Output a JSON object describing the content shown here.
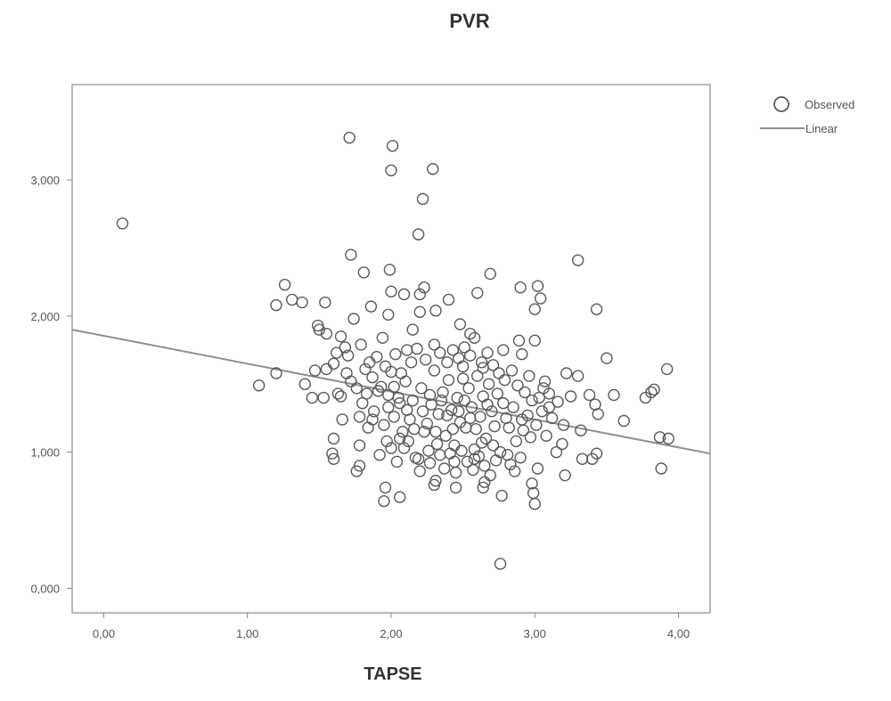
{
  "chart_data": {
    "type": "scatter",
    "title": "PVR",
    "xlabel": "TAPSE",
    "ylabel": "",
    "xlim": [
      -0.22,
      4.22
    ],
    "ylim": [
      -0.18,
      3.7
    ],
    "x_ticks": [
      0,
      1,
      2,
      3,
      4
    ],
    "x_tick_labels": [
      "0,00",
      "1,00",
      "2,00",
      "3,00",
      "4,00"
    ],
    "y_ticks": [
      0,
      1,
      2,
      3
    ],
    "y_tick_labels": [
      "0,000",
      "1,000",
      "2,000",
      "3,000"
    ],
    "grid": false,
    "legend": {
      "position": "top-right",
      "entries": [
        {
          "label": "Observed",
          "marker": "open-circle"
        },
        {
          "label": "Linear",
          "marker": "line"
        }
      ]
    },
    "fit_line": {
      "name": "Linear",
      "x": [
        -0.22,
        4.22
      ],
      "y": [
        1.9,
        0.99
      ]
    },
    "series": [
      {
        "name": "Observed",
        "points": [
          [
            0.13,
            2.68
          ],
          [
            1.71,
            3.31
          ],
          [
            2.01,
            3.25
          ],
          [
            2.0,
            3.07
          ],
          [
            2.29,
            3.08
          ],
          [
            2.22,
            2.86
          ],
          [
            2.19,
            2.6
          ],
          [
            1.72,
            2.45
          ],
          [
            3.3,
            2.41
          ],
          [
            1.81,
            2.32
          ],
          [
            1.99,
            2.34
          ],
          [
            2.69,
            2.31
          ],
          [
            1.26,
            2.23
          ],
          [
            2.9,
            2.21
          ],
          [
            3.02,
            2.22
          ],
          [
            2.23,
            2.21
          ],
          [
            1.31,
            2.12
          ],
          [
            1.38,
            2.1
          ],
          [
            1.2,
            2.08
          ],
          [
            1.54,
            2.1
          ],
          [
            2.0,
            2.18
          ],
          [
            2.09,
            2.16
          ],
          [
            2.2,
            2.16
          ],
          [
            2.6,
            2.17
          ],
          [
            3.04,
            2.13
          ],
          [
            3.43,
            2.05
          ],
          [
            2.31,
            2.04
          ],
          [
            2.4,
            2.12
          ],
          [
            1.86,
            2.07
          ],
          [
            1.98,
            2.01
          ],
          [
            1.74,
            1.98
          ],
          [
            2.2,
            2.03
          ],
          [
            3.0,
            2.05
          ],
          [
            1.49,
            1.93
          ],
          [
            1.5,
            1.9
          ],
          [
            1.55,
            1.87
          ],
          [
            2.48,
            1.94
          ],
          [
            2.58,
            1.84
          ],
          [
            2.55,
            1.87
          ],
          [
            1.65,
            1.85
          ],
          [
            1.94,
            1.84
          ],
          [
            2.15,
            1.9
          ],
          [
            2.3,
            1.79
          ],
          [
            2.89,
            1.82
          ],
          [
            3.0,
            1.82
          ],
          [
            1.68,
            1.77
          ],
          [
            1.79,
            1.79
          ],
          [
            2.11,
            1.75
          ],
          [
            2.78,
            1.75
          ],
          [
            1.62,
            1.73
          ],
          [
            2.91,
            1.72
          ],
          [
            3.5,
            1.69
          ],
          [
            1.7,
            1.71
          ],
          [
            2.64,
            1.62
          ],
          [
            1.47,
            1.6
          ],
          [
            1.6,
            1.65
          ],
          [
            1.82,
            1.61
          ],
          [
            3.22,
            1.58
          ],
          [
            3.92,
            1.61
          ],
          [
            1.2,
            1.58
          ],
          [
            1.55,
            1.61
          ],
          [
            2.0,
            1.59
          ],
          [
            3.3,
            1.56
          ],
          [
            1.87,
            1.55
          ],
          [
            2.5,
            1.54
          ],
          [
            1.4,
            1.5
          ],
          [
            1.08,
            1.49
          ],
          [
            1.93,
            1.48
          ],
          [
            3.06,
            1.47
          ],
          [
            3.83,
            1.46
          ],
          [
            3.81,
            1.44
          ],
          [
            3.38,
            1.42
          ],
          [
            3.55,
            1.42
          ],
          [
            1.63,
            1.43
          ],
          [
            1.65,
            1.41
          ],
          [
            1.98,
            1.42
          ],
          [
            3.25,
            1.41
          ],
          [
            3.77,
            1.4
          ],
          [
            1.45,
            1.4
          ],
          [
            1.53,
            1.4
          ],
          [
            3.42,
            1.35
          ],
          [
            3.1,
            1.33
          ],
          [
            3.44,
            1.28
          ],
          [
            3.62,
            1.23
          ],
          [
            1.66,
            1.24
          ],
          [
            1.78,
            1.26
          ],
          [
            3.2,
            1.2
          ],
          [
            3.32,
            1.16
          ],
          [
            1.6,
            1.1
          ],
          [
            2.06,
            1.1
          ],
          [
            3.87,
            1.11
          ],
          [
            3.93,
            1.1
          ],
          [
            1.78,
            1.05
          ],
          [
            2.0,
            1.03
          ],
          [
            3.15,
            1.0
          ],
          [
            3.43,
            0.99
          ],
          [
            1.59,
            0.99
          ],
          [
            1.6,
            0.95
          ],
          [
            3.33,
            0.95
          ],
          [
            3.4,
            0.95
          ],
          [
            1.78,
            0.9
          ],
          [
            3.02,
            0.88
          ],
          [
            3.88,
            0.88
          ],
          [
            1.76,
            0.86
          ],
          [
            2.2,
            0.86
          ],
          [
            3.21,
            0.83
          ],
          [
            2.31,
            0.79
          ],
          [
            2.65,
            0.78
          ],
          [
            2.98,
            0.77
          ],
          [
            1.96,
            0.74
          ],
          [
            2.3,
            0.76
          ],
          [
            2.45,
            0.74
          ],
          [
            2.64,
            0.74
          ],
          [
            2.99,
            0.7
          ],
          [
            2.77,
            0.68
          ],
          [
            2.06,
            0.67
          ],
          [
            1.95,
            0.64
          ],
          [
            3.0,
            0.62
          ],
          [
            2.76,
            0.18
          ],
          [
            2.1,
            1.52
          ],
          [
            2.15,
            1.38
          ],
          [
            2.21,
            1.47
          ],
          [
            2.25,
            1.21
          ],
          [
            2.28,
            1.35
          ],
          [
            2.3,
            1.6
          ],
          [
            2.33,
            1.28
          ],
          [
            2.36,
            1.44
          ],
          [
            2.38,
            1.12
          ],
          [
            2.4,
            1.53
          ],
          [
            2.42,
            1.31
          ],
          [
            2.44,
            1.05
          ],
          [
            2.46,
            1.4
          ],
          [
            2.48,
            1.22
          ],
          [
            2.5,
            1.63
          ],
          [
            2.52,
            1.18
          ],
          [
            2.54,
            1.47
          ],
          [
            2.56,
            1.33
          ],
          [
            2.58,
            1.02
          ],
          [
            2.6,
            1.56
          ],
          [
            2.62,
            1.26
          ],
          [
            2.64,
            1.41
          ],
          [
            2.66,
            1.1
          ],
          [
            2.68,
            1.5
          ],
          [
            2.7,
            1.3
          ],
          [
            2.72,
            1.19
          ],
          [
            2.74,
            1.43
          ],
          [
            2.76,
            1.0
          ],
          [
            2.78,
            1.36
          ],
          [
            2.8,
            1.25
          ],
          [
            2.12,
            1.08
          ],
          [
            2.17,
            0.96
          ],
          [
            2.23,
            1.15
          ],
          [
            2.27,
            0.92
          ],
          [
            2.32,
            1.06
          ],
          [
            2.37,
            0.88
          ],
          [
            2.41,
            0.99
          ],
          [
            2.45,
            0.85
          ],
          [
            2.49,
            1.01
          ],
          [
            2.53,
            0.93
          ],
          [
            2.57,
            0.87
          ],
          [
            2.61,
            0.97
          ],
          [
            2.65,
            0.9
          ],
          [
            2.69,
            0.83
          ],
          [
            2.73,
            0.94
          ],
          [
            2.83,
            0.91
          ],
          [
            2.87,
            1.08
          ],
          [
            2.92,
            1.16
          ],
          [
            2.95,
            1.27
          ],
          [
            2.98,
            1.38
          ],
          [
            3.01,
            1.2
          ],
          [
            3.05,
            1.3
          ],
          [
            3.08,
            1.12
          ],
          [
            3.12,
            1.25
          ],
          [
            3.16,
            1.37
          ],
          [
            3.19,
            1.06
          ],
          [
            1.88,
            1.3
          ],
          [
            1.91,
            1.45
          ],
          [
            1.95,
            1.2
          ],
          [
            1.98,
            1.33
          ],
          [
            2.02,
            1.26
          ],
          [
            2.05,
            1.4
          ],
          [
            2.08,
            1.15
          ],
          [
            2.13,
            1.24
          ],
          [
            1.84,
            1.18
          ],
          [
            1.8,
            1.36
          ],
          [
            1.76,
            1.47
          ],
          [
            1.72,
            1.52
          ],
          [
            1.69,
            1.58
          ],
          [
            1.85,
            1.66
          ],
          [
            1.9,
            1.7
          ],
          [
            1.96,
            1.63
          ],
          [
            2.03,
            1.72
          ],
          [
            2.07,
            1.58
          ],
          [
            2.14,
            1.66
          ],
          [
            2.18,
            1.76
          ],
          [
            2.24,
            1.68
          ],
          [
            2.34,
            1.73
          ],
          [
            2.39,
            1.66
          ],
          [
            2.43,
            1.75
          ],
          [
            2.47,
            1.69
          ],
          [
            2.51,
            1.77
          ],
          [
            2.55,
            1.71
          ],
          [
            2.63,
            1.66
          ],
          [
            2.67,
            1.73
          ],
          [
            2.71,
            1.64
          ],
          [
            2.75,
            1.58
          ],
          [
            2.79,
            1.53
          ],
          [
            2.84,
            1.6
          ],
          [
            2.88,
            1.49
          ],
          [
            2.93,
            1.44
          ],
          [
            2.96,
            1.56
          ],
          [
            3.03,
            1.4
          ],
          [
            3.07,
            1.52
          ],
          [
            2.35,
            1.38
          ],
          [
            2.39,
            1.27
          ],
          [
            2.43,
            1.17
          ],
          [
            2.47,
            1.3
          ],
          [
            2.31,
            1.15
          ],
          [
            2.27,
            1.42
          ],
          [
            2.59,
            1.17
          ],
          [
            2.63,
            1.07
          ],
          [
            2.67,
            1.35
          ],
          [
            2.71,
            1.05
          ],
          [
            2.55,
            1.25
          ],
          [
            2.51,
            1.38
          ],
          [
            1.92,
            0.98
          ],
          [
            1.97,
            1.08
          ],
          [
            2.04,
            0.93
          ],
          [
            2.09,
            1.03
          ],
          [
            2.19,
            0.95
          ],
          [
            2.81,
            0.98
          ],
          [
            2.86,
            0.86
          ],
          [
            2.9,
            0.96
          ],
          [
            2.34,
            0.98
          ],
          [
            2.44,
            0.93
          ],
          [
            2.58,
            0.95
          ],
          [
            2.26,
            1.01
          ],
          [
            2.11,
            1.31
          ],
          [
            2.16,
            1.17
          ],
          [
            2.22,
            1.3
          ],
          [
            2.85,
            1.33
          ],
          [
            2.91,
            1.24
          ],
          [
            2.97,
            1.11
          ],
          [
            2.82,
            1.18
          ],
          [
            3.1,
            1.43
          ],
          [
            1.83,
            1.43
          ],
          [
            1.87,
            1.24
          ],
          [
            2.02,
            1.48
          ],
          [
            2.06,
            1.36
          ]
        ]
      }
    ]
  }
}
